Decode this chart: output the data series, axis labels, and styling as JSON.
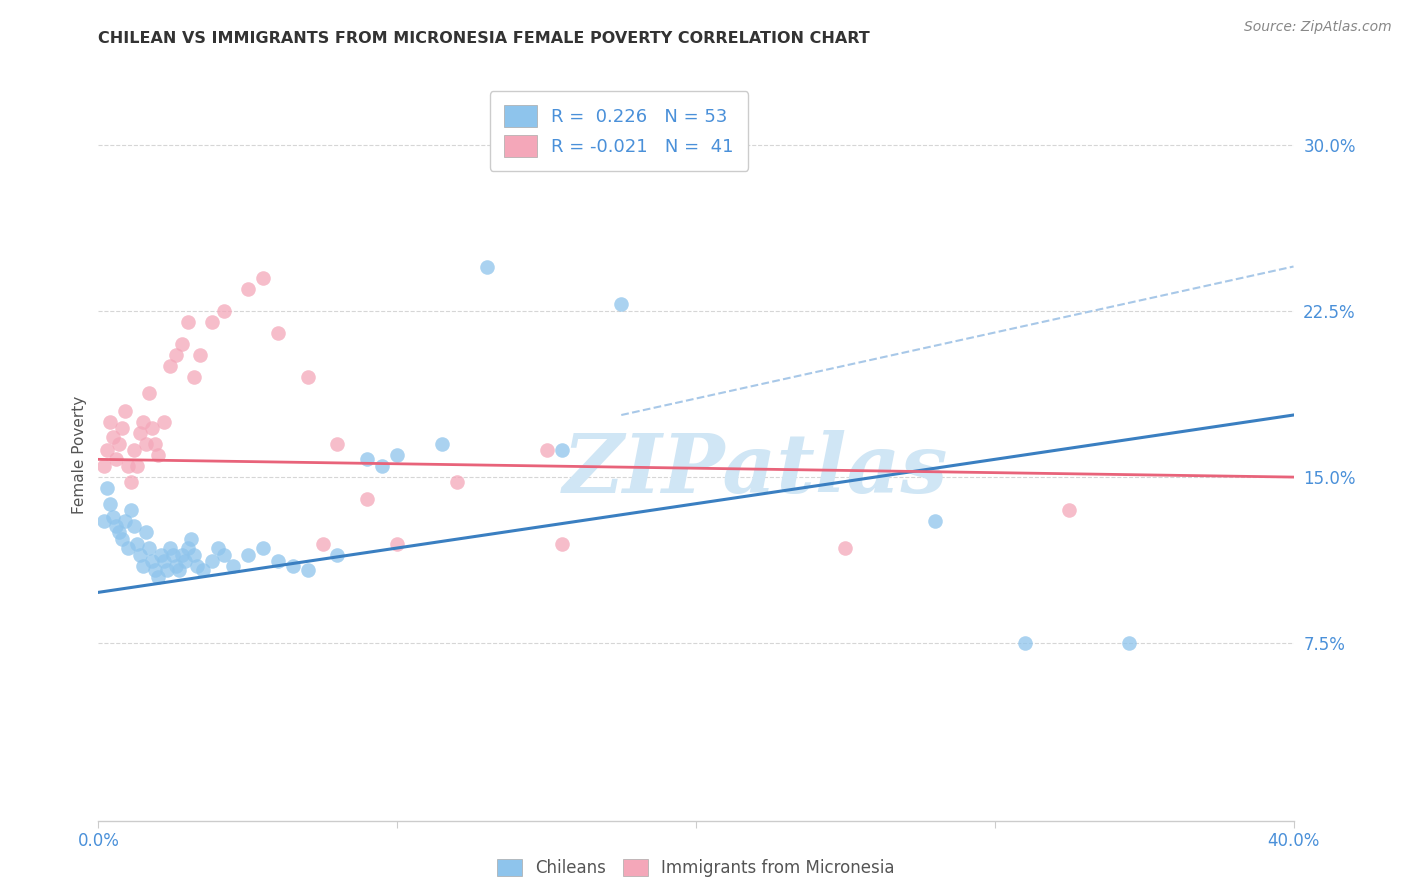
{
  "title": "CHILEAN VS IMMIGRANTS FROM MICRONESIA FEMALE POVERTY CORRELATION CHART",
  "source": "Source: ZipAtlas.com",
  "ylabel": "Female Poverty",
  "ytick_labels": [
    "7.5%",
    "15.0%",
    "22.5%",
    "30.0%"
  ],
  "ytick_values": [
    0.075,
    0.15,
    0.225,
    0.3
  ],
  "xlim": [
    0.0,
    0.4
  ],
  "ylim": [
    -0.005,
    0.325
  ],
  "legend_r_chilean": "0.226",
  "legend_n_chilean": "53",
  "legend_r_micronesia": "-0.021",
  "legend_n_micronesia": "41",
  "chilean_color": "#8ec4ec",
  "micronesia_color": "#f4a7b9",
  "trendline_chilean_color": "#3a7fc1",
  "trendline_micronesia_color": "#e8637a",
  "trendline_dashed_color": "#a8c8e8",
  "watermark": "ZIPatlas",
  "watermark_color": "#d0e6f5",
  "background_color": "#ffffff",
  "chilean_trendline_x": [
    0.0,
    0.4
  ],
  "chilean_trendline_y": [
    0.098,
    0.178
  ],
  "micronesia_trendline_x": [
    0.0,
    0.4
  ],
  "micronesia_trendline_y": [
    0.158,
    0.15
  ],
  "dashed_trendline_x": [
    0.175,
    0.4
  ],
  "dashed_trendline_y": [
    0.178,
    0.245
  ],
  "chilean_points_x": [
    0.002,
    0.003,
    0.004,
    0.005,
    0.006,
    0.007,
    0.008,
    0.009,
    0.01,
    0.011,
    0.012,
    0.013,
    0.014,
    0.015,
    0.016,
    0.017,
    0.018,
    0.019,
    0.02,
    0.021,
    0.022,
    0.023,
    0.024,
    0.025,
    0.026,
    0.027,
    0.028,
    0.029,
    0.03,
    0.031,
    0.032,
    0.033,
    0.035,
    0.038,
    0.04,
    0.042,
    0.045,
    0.05,
    0.055,
    0.06,
    0.065,
    0.07,
    0.08,
    0.09,
    0.095,
    0.1,
    0.115,
    0.13,
    0.155,
    0.175,
    0.28,
    0.31,
    0.345
  ],
  "chilean_points_y": [
    0.13,
    0.145,
    0.138,
    0.132,
    0.128,
    0.125,
    0.122,
    0.13,
    0.118,
    0.135,
    0.128,
    0.12,
    0.115,
    0.11,
    0.125,
    0.118,
    0.112,
    0.108,
    0.105,
    0.115,
    0.112,
    0.108,
    0.118,
    0.115,
    0.11,
    0.108,
    0.115,
    0.112,
    0.118,
    0.122,
    0.115,
    0.11,
    0.108,
    0.112,
    0.118,
    0.115,
    0.11,
    0.115,
    0.118,
    0.112,
    0.11,
    0.108,
    0.115,
    0.158,
    0.155,
    0.16,
    0.165,
    0.245,
    0.162,
    0.228,
    0.13,
    0.075,
    0.075
  ],
  "micronesia_points_x": [
    0.002,
    0.003,
    0.004,
    0.005,
    0.006,
    0.007,
    0.008,
    0.009,
    0.01,
    0.011,
    0.012,
    0.013,
    0.014,
    0.015,
    0.016,
    0.017,
    0.018,
    0.019,
    0.02,
    0.022,
    0.024,
    0.026,
    0.028,
    0.03,
    0.032,
    0.034,
    0.038,
    0.042,
    0.05,
    0.055,
    0.06,
    0.07,
    0.075,
    0.08,
    0.09,
    0.1,
    0.12,
    0.15,
    0.155,
    0.25,
    0.325
  ],
  "micronesia_points_y": [
    0.155,
    0.162,
    0.175,
    0.168,
    0.158,
    0.165,
    0.172,
    0.18,
    0.155,
    0.148,
    0.162,
    0.155,
    0.17,
    0.175,
    0.165,
    0.188,
    0.172,
    0.165,
    0.16,
    0.175,
    0.2,
    0.205,
    0.21,
    0.22,
    0.195,
    0.205,
    0.22,
    0.225,
    0.235,
    0.24,
    0.215,
    0.195,
    0.12,
    0.165,
    0.14,
    0.12,
    0.148,
    0.162,
    0.12,
    0.118,
    0.135
  ]
}
